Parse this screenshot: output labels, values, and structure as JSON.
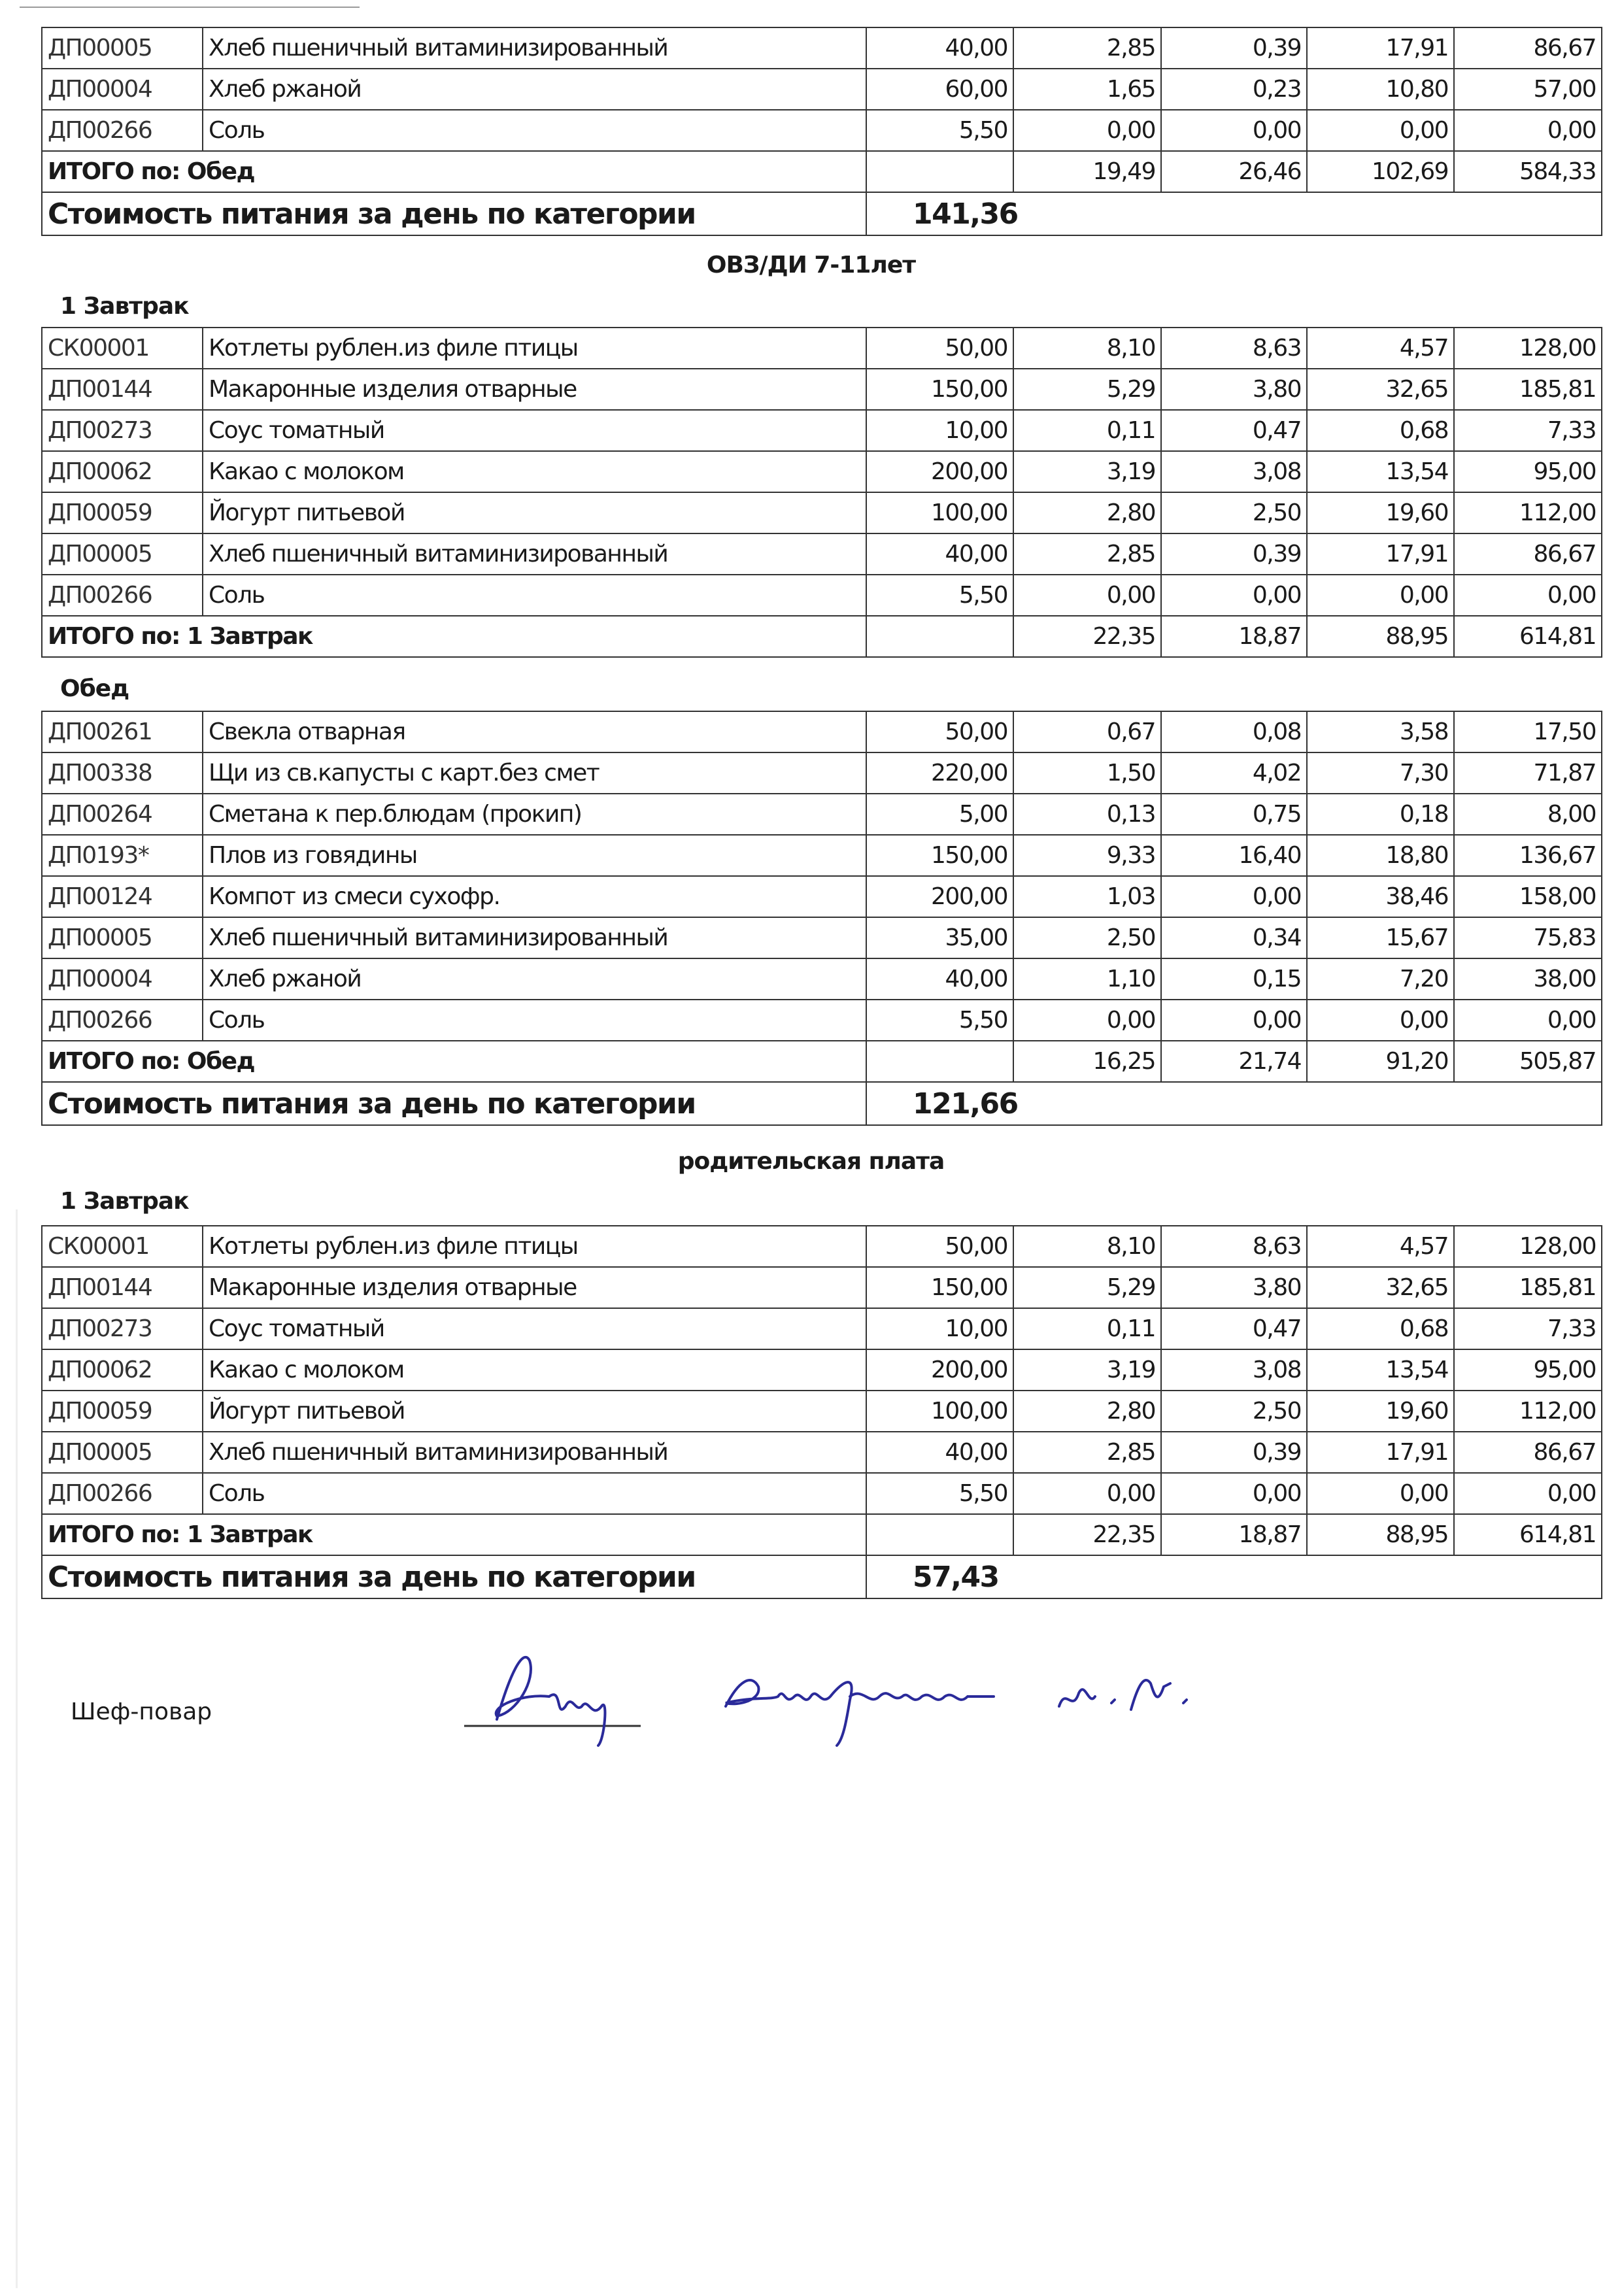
{
  "blocks": [
    {
      "rows": [
        {
          "code": "ДП00005",
          "name": "Хлеб пшеничный витаминизированный",
          "qty": "40,00",
          "b": "2,85",
          "f": "0,39",
          "c": "17,91",
          "k": "86,67"
        },
        {
          "code": "ДП00004",
          "name": "Хлеб ржаной",
          "qty": "60,00",
          "b": "1,65",
          "f": "0,23",
          "c": "10,80",
          "k": "57,00"
        },
        {
          "code": "ДП00266",
          "name": "Соль",
          "qty": "5,50",
          "b": "0,00",
          "f": "0,00",
          "c": "0,00",
          "k": "0,00"
        }
      ],
      "total": {
        "label": "ИТОГО по: Обед",
        "b": "19,49",
        "f": "26,46",
        "c": "102,69",
        "k": "584,33"
      },
      "cost": {
        "label": "Стоимость питания за день по категории",
        "value": "141,36"
      }
    },
    {
      "title": "ОВЗ/ДИ 7-11лет",
      "meal": "1 Завтрак",
      "rows": [
        {
          "code": "СК00001",
          "name": "Котлеты рублен.из филе птицы",
          "qty": "50,00",
          "b": "8,10",
          "f": "8,63",
          "c": "4,57",
          "k": "128,00"
        },
        {
          "code": "ДП00144",
          "name": "Макаронные изделия отварные",
          "qty": "150,00",
          "b": "5,29",
          "f": "3,80",
          "c": "32,65",
          "k": "185,81"
        },
        {
          "code": "ДП00273",
          "name": "Соус томатный",
          "qty": "10,00",
          "b": "0,11",
          "f": "0,47",
          "c": "0,68",
          "k": "7,33"
        },
        {
          "code": "ДП00062",
          "name": "Какао с молоком",
          "qty": "200,00",
          "b": "3,19",
          "f": "3,08",
          "c": "13,54",
          "k": "95,00"
        },
        {
          "code": "ДП00059",
          "name": "Йогурт питьевой",
          "qty": "100,00",
          "b": "2,80",
          "f": "2,50",
          "c": "19,60",
          "k": "112,00"
        },
        {
          "code": "ДП00005",
          "name": "Хлеб пшеничный витаминизированный",
          "qty": "40,00",
          "b": "2,85",
          "f": "0,39",
          "c": "17,91",
          "k": "86,67"
        },
        {
          "code": "ДП00266",
          "name": "Соль",
          "qty": "5,50",
          "b": "0,00",
          "f": "0,00",
          "c": "0,00",
          "k": "0,00"
        }
      ],
      "total": {
        "label": "ИТОГО по: 1 Завтрак",
        "b": "22,35",
        "f": "18,87",
        "c": "88,95",
        "k": "614,81"
      }
    },
    {
      "meal": "Обед",
      "rows": [
        {
          "code": "ДП00261",
          "name": "Свекла отварная",
          "qty": "50,00",
          "b": "0,67",
          "f": "0,08",
          "c": "3,58",
          "k": "17,50"
        },
        {
          "code": "ДП00338",
          "name": "Щи из св.капусты с карт.без смет",
          "qty": "220,00",
          "b": "1,50",
          "f": "4,02",
          "c": "7,30",
          "k": "71,87"
        },
        {
          "code": "ДП00264",
          "name": "Сметана к пер.блюдам (прокип)",
          "qty": "5,00",
          "b": "0,13",
          "f": "0,75",
          "c": "0,18",
          "k": "8,00"
        },
        {
          "code": "ДП0193*",
          "name": "Плов из говядины",
          "qty": "150,00",
          "b": "9,33",
          "f": "16,40",
          "c": "18,80",
          "k": "136,67"
        },
        {
          "code": "ДП00124",
          "name": "Компот из смеси сухофр.",
          "qty": "200,00",
          "b": "1,03",
          "f": "0,00",
          "c": "38,46",
          "k": "158,00"
        },
        {
          "code": "ДП00005",
          "name": "Хлеб пшеничный витаминизированный",
          "qty": "35,00",
          "b": "2,50",
          "f": "0,34",
          "c": "15,67",
          "k": "75,83"
        },
        {
          "code": "ДП00004",
          "name": "Хлеб ржаной",
          "qty": "40,00",
          "b": "1,10",
          "f": "0,15",
          "c": "7,20",
          "k": "38,00"
        },
        {
          "code": "ДП00266",
          "name": "Соль",
          "qty": "5,50",
          "b": "0,00",
          "f": "0,00",
          "c": "0,00",
          "k": "0,00"
        }
      ],
      "total": {
        "label": "ИТОГО по: Обед",
        "b": "16,25",
        "f": "21,74",
        "c": "91,20",
        "k": "505,87"
      },
      "cost": {
        "label": "Стоимость питания за день по категории",
        "value": "121,66"
      }
    },
    {
      "title": "родительская плата",
      "meal": "1 Завтрак",
      "rows": [
        {
          "code": "СК00001",
          "name": "Котлеты рублен.из филе птицы",
          "qty": "50,00",
          "b": "8,10",
          "f": "8,63",
          "c": "4,57",
          "k": "128,00"
        },
        {
          "code": "ДП00144",
          "name": "Макаронные изделия отварные",
          "qty": "150,00",
          "b": "5,29",
          "f": "3,80",
          "c": "32,65",
          "k": "185,81"
        },
        {
          "code": "ДП00273",
          "name": "Соус томатный",
          "qty": "10,00",
          "b": "0,11",
          "f": "0,47",
          "c": "0,68",
          "k": "7,33"
        },
        {
          "code": "ДП00062",
          "name": "Какао с молоком",
          "qty": "200,00",
          "b": "3,19",
          "f": "3,08",
          "c": "13,54",
          "k": "95,00"
        },
        {
          "code": "ДП00059",
          "name": "Йогурт питьевой",
          "qty": "100,00",
          "b": "2,80",
          "f": "2,50",
          "c": "19,60",
          "k": "112,00"
        },
        {
          "code": "ДП00005",
          "name": "Хлеб пшеничный витаминизированный",
          "qty": "40,00",
          "b": "2,85",
          "f": "0,39",
          "c": "17,91",
          "k": "86,67"
        },
        {
          "code": "ДП00266",
          "name": "Соль",
          "qty": "5,50",
          "b": "0,00",
          "f": "0,00",
          "c": "0,00",
          "k": "0,00"
        }
      ],
      "total": {
        "label": "ИТОГО по: 1 Завтрак",
        "b": "22,35",
        "f": "18,87",
        "c": "88,95",
        "k": "614,81"
      },
      "cost": {
        "label": "Стоимость питания за день по категории",
        "value": "57,43"
      }
    }
  ],
  "footer": {
    "chef_label": "Шеф-повар",
    "signature_text": "Ахмадуллина Л. Н.",
    "signature_color": "#2a2a9a"
  }
}
